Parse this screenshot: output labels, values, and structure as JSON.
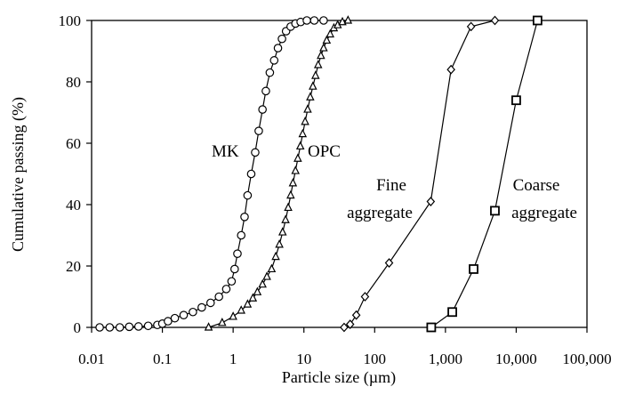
{
  "chart_data": {
    "type": "scatter",
    "title": "",
    "xlabel": "Particle size (µm)",
    "ylabel": "Cumulative passing (%)",
    "x_scale": "log",
    "xlim": [
      0.01,
      100000
    ],
    "ylim": [
      0,
      100
    ],
    "grid": false,
    "legend": "none",
    "x_ticks": [
      {
        "value": 0.01,
        "label": "0.01"
      },
      {
        "value": 0.1,
        "label": "0.1"
      },
      {
        "value": 1,
        "label": "1"
      },
      {
        "value": 10,
        "label": "10"
      },
      {
        "value": 100,
        "label": "100"
      },
      {
        "value": 1000,
        "label": "1,000"
      },
      {
        "value": 10000,
        "label": "10,000"
      },
      {
        "value": 100000,
        "label": "100,000"
      }
    ],
    "y_ticks": [
      {
        "value": 0,
        "label": "0"
      },
      {
        "value": 20,
        "label": "20"
      },
      {
        "value": 40,
        "label": "40"
      },
      {
        "value": 60,
        "label": "60"
      },
      {
        "value": 80,
        "label": "80"
      },
      {
        "value": 100,
        "label": "100"
      }
    ],
    "annotations": [
      {
        "text": "MK",
        "series": "MK"
      },
      {
        "text": "OPC",
        "series": "OPC"
      },
      {
        "text": "Fine",
        "series": "Fine aggregate"
      },
      {
        "text": "aggregate",
        "series": "Fine aggregate"
      },
      {
        "text": "Coarse",
        "series": "Coarse aggregate"
      },
      {
        "text": "aggregate",
        "series": "Coarse aggregate"
      }
    ],
    "series": [
      {
        "marker": "circle",
        "color": "#000000",
        "x": [
          0.013,
          0.018,
          0.025,
          0.034,
          0.046,
          0.063,
          0.085,
          0.1,
          0.12,
          0.15,
          0.2,
          0.27,
          0.36,
          0.48,
          0.63,
          0.8,
          0.95,
          1.05,
          1.15,
          1.3,
          1.45,
          1.6,
          1.8,
          2.05,
          2.3,
          2.6,
          2.9,
          3.3,
          3.8,
          4.3,
          4.9,
          5.6,
          6.5,
          7.6,
          9,
          11,
          14,
          19
        ],
        "y": [
          0,
          0,
          0,
          0.2,
          0.3,
          0.5,
          0.8,
          1.2,
          2,
          3,
          4,
          5,
          6.5,
          8,
          10,
          12.5,
          15,
          19,
          24,
          30,
          36,
          43,
          50,
          57,
          64,
          71,
          77,
          83,
          87,
          91,
          94,
          96.5,
          98,
          99,
          99.5,
          100,
          100,
          100
        ]
      },
      {
        "marker": "triangle",
        "color": "#000000",
        "x": [
          0.45,
          0.7,
          1,
          1.3,
          1.6,
          1.9,
          2.2,
          2.6,
          3,
          3.5,
          4,
          4.5,
          5,
          5.5,
          6,
          6.5,
          7,
          7.6,
          8.2,
          8.9,
          9.6,
          10.4,
          11.3,
          12.3,
          13.4,
          14.6,
          15.9,
          17.4,
          19,
          21,
          23.5,
          26.5,
          30,
          35,
          42
        ],
        "y": [
          0,
          1.5,
          3.5,
          5.5,
          7.5,
          9.5,
          11.5,
          14,
          16.5,
          19,
          23,
          27,
          31,
          35,
          39,
          43,
          47,
          51,
          55,
          59,
          63,
          67,
          71,
          75,
          78.5,
          82,
          85.5,
          88.5,
          91,
          93.5,
          95.5,
          97.5,
          98.5,
          99.5,
          100
        ]
      },
      {
        "marker": "diamond",
        "color": "#000000",
        "x": [
          37,
          45,
          55,
          73,
          160,
          620,
          1200,
          2300,
          5000
        ],
        "y": [
          0,
          1,
          4,
          10,
          21,
          41,
          84,
          98,
          100
        ]
      },
      {
        "marker": "square",
        "color": "#000000",
        "x": [
          630,
          1250,
          2500,
          5000,
          10000,
          20000
        ],
        "y": [
          0,
          5,
          19,
          38,
          74,
          100
        ]
      }
    ]
  }
}
